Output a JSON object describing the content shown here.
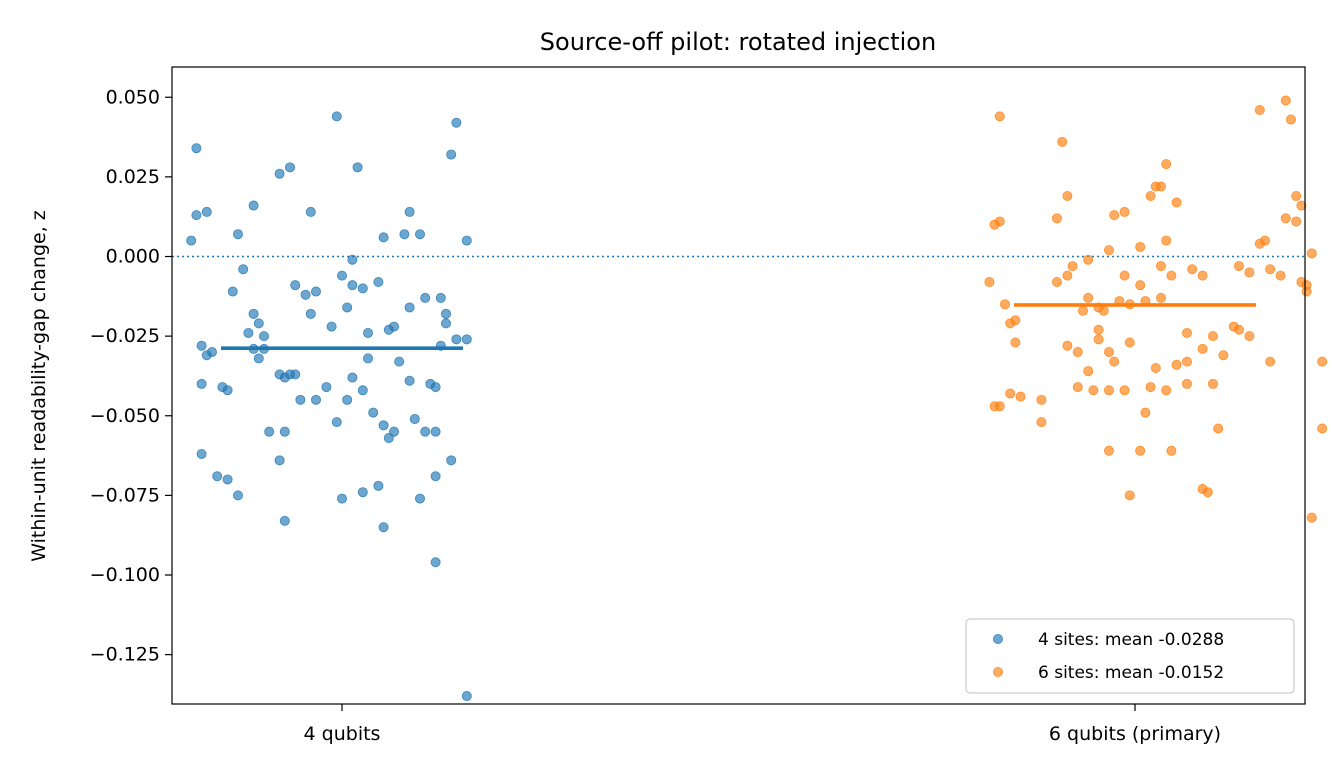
{
  "chart_data": {
    "type": "scatter",
    "title": "Source-off pilot: rotated injection",
    "xlabel": "",
    "ylabel": "Within-unit readability-gap change, z",
    "ylim": [
      -0.1405,
      0.0595
    ],
    "yticks": [
      0.05,
      0.025,
      0.0,
      -0.025,
      -0.05,
      -0.075,
      -0.1,
      -0.125
    ],
    "ytick_labels": [
      "0.050",
      "0.025",
      "0.000",
      "−0.025",
      "−0.050",
      "−0.075",
      "−0.100",
      "−0.125"
    ],
    "categories": [
      "4 qubits",
      "6 qubits (primary)"
    ],
    "reference_line": {
      "y": 0.0,
      "style": "dotted",
      "color": "#1f77b4"
    },
    "grid": false,
    "legend_position": "lower right",
    "series": [
      {
        "name": "4 sites: mean -0.0288",
        "category_index": 0,
        "color": "#1f77b4",
        "mean": -0.0288,
        "points": [
          [
            -0.28,
            0.034
          ],
          [
            -0.28,
            0.013
          ],
          [
            -0.26,
            0.014
          ],
          [
            -0.29,
            0.005
          ],
          [
            -0.2,
            0.007
          ],
          [
            -0.19,
            -0.004
          ],
          [
            -0.21,
            -0.011
          ],
          [
            -0.17,
            -0.018
          ],
          [
            -0.16,
            -0.021
          ],
          [
            -0.17,
            0.016
          ],
          [
            -0.12,
            0.026
          ],
          [
            -0.1,
            0.028
          ],
          [
            -0.06,
            0.014
          ],
          [
            -0.01,
            0.044
          ],
          [
            0.03,
            0.028
          ],
          [
            0.22,
            0.042
          ],
          [
            0.21,
            0.032
          ],
          [
            0.24,
            0.005
          ],
          [
            0.13,
            0.014
          ],
          [
            0.08,
            0.006
          ],
          [
            0.12,
            0.007
          ],
          [
            0.15,
            0.007
          ],
          [
            0.02,
            -0.001
          ],
          [
            -0.09,
            -0.009
          ],
          [
            -0.07,
            -0.012
          ],
          [
            -0.05,
            -0.011
          ],
          [
            0.0,
            -0.006
          ],
          [
            0.02,
            -0.009
          ],
          [
            0.04,
            -0.01
          ],
          [
            0.07,
            -0.008
          ],
          [
            0.01,
            -0.016
          ],
          [
            -0.06,
            -0.018
          ],
          [
            0.13,
            -0.016
          ],
          [
            0.16,
            -0.013
          ],
          [
            0.19,
            -0.013
          ],
          [
            0.2,
            -0.018
          ],
          [
            0.2,
            -0.021
          ],
          [
            0.22,
            -0.026
          ],
          [
            0.24,
            -0.026
          ],
          [
            0.19,
            -0.028
          ],
          [
            -0.27,
            -0.028
          ],
          [
            -0.26,
            -0.031
          ],
          [
            -0.25,
            -0.03
          ],
          [
            -0.18,
            -0.024
          ],
          [
            -0.15,
            -0.025
          ],
          [
            -0.17,
            -0.029
          ],
          [
            -0.15,
            -0.029
          ],
          [
            -0.16,
            -0.032
          ],
          [
            -0.12,
            -0.037
          ],
          [
            -0.09,
            -0.037
          ],
          [
            -0.1,
            -0.037
          ],
          [
            -0.11,
            -0.038
          ],
          [
            -0.27,
            -0.04
          ],
          [
            -0.23,
            -0.041
          ],
          [
            -0.22,
            -0.042
          ],
          [
            -0.08,
            -0.045
          ],
          [
            -0.05,
            -0.045
          ],
          [
            -0.03,
            -0.041
          ],
          [
            0.02,
            -0.038
          ],
          [
            0.01,
            -0.045
          ],
          [
            0.05,
            -0.024
          ],
          [
            0.09,
            -0.023
          ],
          [
            0.1,
            -0.022
          ],
          [
            0.05,
            -0.032
          ],
          [
            0.11,
            -0.033
          ],
          [
            0.13,
            -0.039
          ],
          [
            0.17,
            -0.04
          ],
          [
            0.18,
            -0.041
          ],
          [
            0.04,
            -0.042
          ],
          [
            -0.02,
            -0.022
          ],
          [
            -0.14,
            -0.055
          ],
          [
            -0.11,
            -0.055
          ],
          [
            -0.01,
            -0.052
          ],
          [
            0.06,
            -0.049
          ],
          [
            0.08,
            -0.053
          ],
          [
            0.09,
            -0.057
          ],
          [
            0.1,
            -0.055
          ],
          [
            0.14,
            -0.051
          ],
          [
            0.16,
            -0.055
          ],
          [
            0.18,
            -0.055
          ],
          [
            -0.27,
            -0.062
          ],
          [
            -0.24,
            -0.069
          ],
          [
            -0.22,
            -0.07
          ],
          [
            -0.2,
            -0.075
          ],
          [
            -0.12,
            -0.064
          ],
          [
            -0.11,
            -0.083
          ],
          [
            0.0,
            -0.076
          ],
          [
            0.04,
            -0.074
          ],
          [
            0.07,
            -0.072
          ],
          [
            0.15,
            -0.076
          ],
          [
            0.18,
            -0.069
          ],
          [
            0.21,
            -0.064
          ],
          [
            0.08,
            -0.085
          ],
          [
            0.18,
            -0.096
          ],
          [
            0.24,
            -0.138
          ]
        ]
      },
      {
        "name": "6 sites: mean -0.0152",
        "category_index": 1,
        "color": "#ff7f0e",
        "mean": -0.0152,
        "points": [
          [
            -0.26,
            0.044
          ],
          [
            -0.14,
            0.036
          ],
          [
            -0.15,
            0.012
          ],
          [
            -0.13,
            0.019
          ],
          [
            -0.26,
            0.011
          ],
          [
            -0.27,
            0.01
          ],
          [
            -0.04,
            0.013
          ],
          [
            -0.02,
            0.014
          ],
          [
            0.03,
            0.019
          ],
          [
            0.04,
            0.022
          ],
          [
            0.06,
            0.029
          ],
          [
            0.05,
            0.022
          ],
          [
            0.08,
            0.017
          ],
          [
            0.24,
            0.046
          ],
          [
            0.29,
            0.049
          ],
          [
            0.3,
            0.043
          ],
          [
            0.31,
            0.019
          ],
          [
            0.32,
            0.016
          ],
          [
            0.29,
            0.012
          ],
          [
            0.31,
            0.011
          ],
          [
            0.25,
            0.005
          ],
          [
            0.24,
            0.004
          ],
          [
            0.01,
            0.003
          ],
          [
            0.06,
            0.005
          ],
          [
            0.34,
            0.001
          ],
          [
            -0.05,
            0.002
          ],
          [
            -0.09,
            -0.001
          ],
          [
            -0.12,
            -0.003
          ],
          [
            -0.13,
            -0.006
          ],
          [
            -0.15,
            -0.008
          ],
          [
            -0.28,
            -0.008
          ],
          [
            -0.02,
            -0.006
          ],
          [
            0.01,
            -0.009
          ],
          [
            0.05,
            -0.003
          ],
          [
            0.07,
            -0.006
          ],
          [
            0.11,
            -0.004
          ],
          [
            0.13,
            -0.006
          ],
          [
            0.2,
            -0.003
          ],
          [
            0.22,
            -0.005
          ],
          [
            0.26,
            -0.004
          ],
          [
            0.28,
            -0.006
          ],
          [
            0.32,
            -0.008
          ],
          [
            0.33,
            -0.009
          ],
          [
            0.33,
            -0.011
          ],
          [
            -0.25,
            -0.015
          ],
          [
            -0.09,
            -0.013
          ],
          [
            -0.07,
            -0.016
          ],
          [
            -0.03,
            -0.014
          ],
          [
            -0.01,
            -0.015
          ],
          [
            0.02,
            -0.014
          ],
          [
            0.05,
            -0.013
          ],
          [
            -0.1,
            -0.017
          ],
          [
            -0.06,
            -0.017
          ],
          [
            -0.24,
            -0.021
          ],
          [
            -0.23,
            -0.02
          ],
          [
            -0.23,
            -0.027
          ],
          [
            -0.07,
            -0.023
          ],
          [
            -0.07,
            -0.026
          ],
          [
            -0.11,
            -0.03
          ],
          [
            -0.05,
            -0.03
          ],
          [
            -0.01,
            -0.027
          ],
          [
            0.1,
            -0.024
          ],
          [
            0.15,
            -0.025
          ],
          [
            0.19,
            -0.022
          ],
          [
            0.2,
            -0.023
          ],
          [
            0.22,
            -0.025
          ],
          [
            0.13,
            -0.029
          ],
          [
            0.17,
            -0.031
          ],
          [
            -0.13,
            -0.028
          ],
          [
            -0.09,
            -0.036
          ],
          [
            -0.04,
            -0.033
          ],
          [
            0.04,
            -0.035
          ],
          [
            0.08,
            -0.034
          ],
          [
            0.1,
            -0.033
          ],
          [
            0.26,
            -0.033
          ],
          [
            0.36,
            -0.033
          ],
          [
            0.36,
            -0.054
          ],
          [
            -0.24,
            -0.043
          ],
          [
            -0.22,
            -0.044
          ],
          [
            -0.18,
            -0.045
          ],
          [
            -0.27,
            -0.047
          ],
          [
            -0.26,
            -0.047
          ],
          [
            -0.11,
            -0.041
          ],
          [
            -0.08,
            -0.042
          ],
          [
            -0.05,
            -0.042
          ],
          [
            -0.02,
            -0.042
          ],
          [
            0.03,
            -0.041
          ],
          [
            0.06,
            -0.042
          ],
          [
            0.1,
            -0.04
          ],
          [
            0.15,
            -0.04
          ],
          [
            -0.18,
            -0.052
          ],
          [
            0.02,
            -0.049
          ],
          [
            0.16,
            -0.054
          ],
          [
            0.01,
            -0.061
          ],
          [
            0.07,
            -0.061
          ],
          [
            0.13,
            -0.073
          ],
          [
            0.14,
            -0.074
          ],
          [
            -0.01,
            -0.075
          ],
          [
            0.34,
            -0.082
          ],
          [
            -0.05,
            -0.061
          ]
        ]
      }
    ]
  }
}
